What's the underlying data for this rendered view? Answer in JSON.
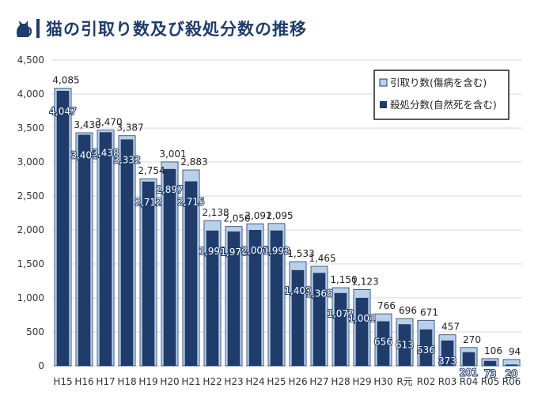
{
  "title": "猫の引取り数及び殺処分数の推移",
  "colors": {
    "intake": "#b8d0ea",
    "culled": "#1f3c6b",
    "intake_border": "#1f3c6b",
    "title": "#1f3c6b"
  },
  "chart_data": {
    "type": "bar",
    "categories": [
      "H15",
      "H16",
      "H17",
      "H18",
      "H19",
      "H20",
      "H21",
      "H22",
      "H23",
      "H24",
      "H25",
      "H26",
      "H27",
      "H28",
      "H29",
      "H30",
      "R元",
      "R02",
      "R03",
      "R04",
      "R05",
      "R06"
    ],
    "series": [
      {
        "name": "引取り数(傷病を含む)",
        "values": [
          4085,
          3430,
          3470,
          3387,
          2754,
          3001,
          2883,
          2138,
          2050,
          2091,
          2095,
          1533,
          1465,
          1150,
          1123,
          766,
          696,
          671,
          457,
          270,
          106,
          94
        ]
      },
      {
        "name": "殺処分数(自然死を含む)",
        "values": [
          4047,
          3401,
          3438,
          3332,
          2712,
          2897,
          2715,
          1991,
          1978,
          2000,
          1992,
          1409,
          1368,
          1072,
          1001,
          656,
          613,
          536,
          373,
          201,
          73,
          20
        ]
      }
    ],
    "value_labels": {
      "intake": [
        "4,085",
        "3,430",
        "3,470",
        "3,387",
        "2,754",
        "3,001",
        "2,883",
        "2,138",
        "2,050",
        "2,091",
        "2,095",
        "1,533",
        "1,465",
        "1,150",
        "1,123",
        "766",
        "696",
        "671",
        "457",
        "270",
        "106",
        "94"
      ],
      "culled": [
        "4,047",
        "3,401",
        "3,438",
        "3,332",
        "2,712",
        "2,897",
        "2,715",
        "1,991",
        "1,978",
        "2,000",
        "1,992",
        "1,409",
        "1,368",
        "1,072",
        "1,001",
        "656",
        "613",
        "536",
        "373",
        "201",
        "73",
        "20"
      ]
    },
    "yticks": [
      0,
      500,
      1000,
      1500,
      2000,
      2500,
      3000,
      3500,
      4000,
      4500
    ],
    "ytick_labels": [
      "0",
      "500",
      "1,000",
      "1,500",
      "2,000",
      "2,500",
      "3,000",
      "3,500",
      "4,000",
      "4,500"
    ],
    "ylim": [
      0,
      4500
    ],
    "grid": true,
    "legend_position": "top-right"
  }
}
